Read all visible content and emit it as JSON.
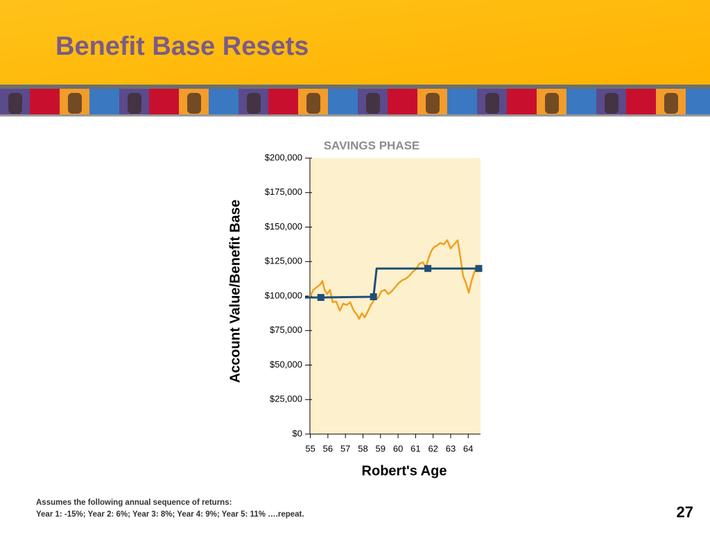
{
  "slide": {
    "title": "Benefit Base Resets",
    "footnote": [
      "Assumes the following annual sequence of returns:",
      "Year 1: -15%; Year 2: 6%; Year 3: 8%; Year 4: 9%; Year 5: 11% ….repeat."
    ],
    "page_number": "27"
  },
  "chart_data": {
    "type": "line",
    "title": "SAVINGS PHASE",
    "x_label": "Robert's Age",
    "y_label": "Account Value/Benefit Base",
    "xlim": [
      54.7,
      64.7
    ],
    "xticks": [
      55,
      56,
      57,
      58,
      59,
      60,
      61,
      62,
      63,
      64
    ],
    "ylim": [
      0,
      200000
    ],
    "yticks": [
      {
        "value": 0,
        "label": "$0"
      },
      {
        "value": 25000,
        "label": "$25,000"
      },
      {
        "value": 50000,
        "label": "$50,000"
      },
      {
        "value": 75000,
        "label": "$75,000"
      },
      {
        "value": 100000,
        "label": "$100,000"
      },
      {
        "value": 125000,
        "label": "$125,000"
      },
      {
        "value": 150000,
        "label": "$150,000"
      },
      {
        "value": 175000,
        "label": "$175,000"
      },
      {
        "value": 200000,
        "label": "$200,000"
      }
    ],
    "plot_background": "#fdf0cc",
    "series": [
      {
        "color": "#f0a020",
        "x": [
          54.7,
          54.98,
          55.17,
          55.37,
          55.57,
          55.69,
          55.81,
          55.96,
          56.12,
          56.28,
          56.48,
          56.68,
          56.87,
          57.07,
          57.27,
          57.47,
          57.66,
          57.78,
          57.94,
          58.1,
          58.26,
          58.45,
          58.65,
          58.85,
          59.05,
          59.25,
          59.44,
          59.64,
          59.84,
          60.04,
          60.24,
          60.43,
          60.63,
          60.83,
          61.02,
          61.22,
          61.42,
          61.58,
          61.74,
          61.89,
          62.05,
          62.21,
          62.41,
          62.61,
          62.8,
          63.0,
          63.2,
          63.4,
          63.55,
          63.71,
          63.87,
          64.03,
          64.19,
          64.38,
          64.58
        ],
        "values": [
          98500,
          99500,
          104500,
          106500,
          108500,
          111000,
          104500,
          101500,
          104500,
          95500,
          96000,
          89500,
          94500,
          93500,
          95500,
          89500,
          86500,
          83500,
          87500,
          84500,
          88500,
          93500,
          97500,
          98500,
          103500,
          104500,
          101500,
          103500,
          106500,
          109500,
          111500,
          112500,
          114500,
          117500,
          119500,
          123500,
          124500,
          120500,
          127500,
          132500,
          135500,
          136500,
          138500,
          137500,
          140500,
          134500,
          137500,
          140500,
          128500,
          114500,
          109500,
          102500,
          111000,
          118500,
          120500
        ]
      },
      {
        "color": "#1f4e79",
        "x": [
          54.7,
          55.6,
          58.6,
          58.78,
          61.7,
          64.6
        ],
        "values": [
          99000,
          99000,
          99500,
          120000,
          120000,
          120000
        ],
        "markers": [
          1,
          2,
          4,
          5
        ]
      }
    ]
  }
}
